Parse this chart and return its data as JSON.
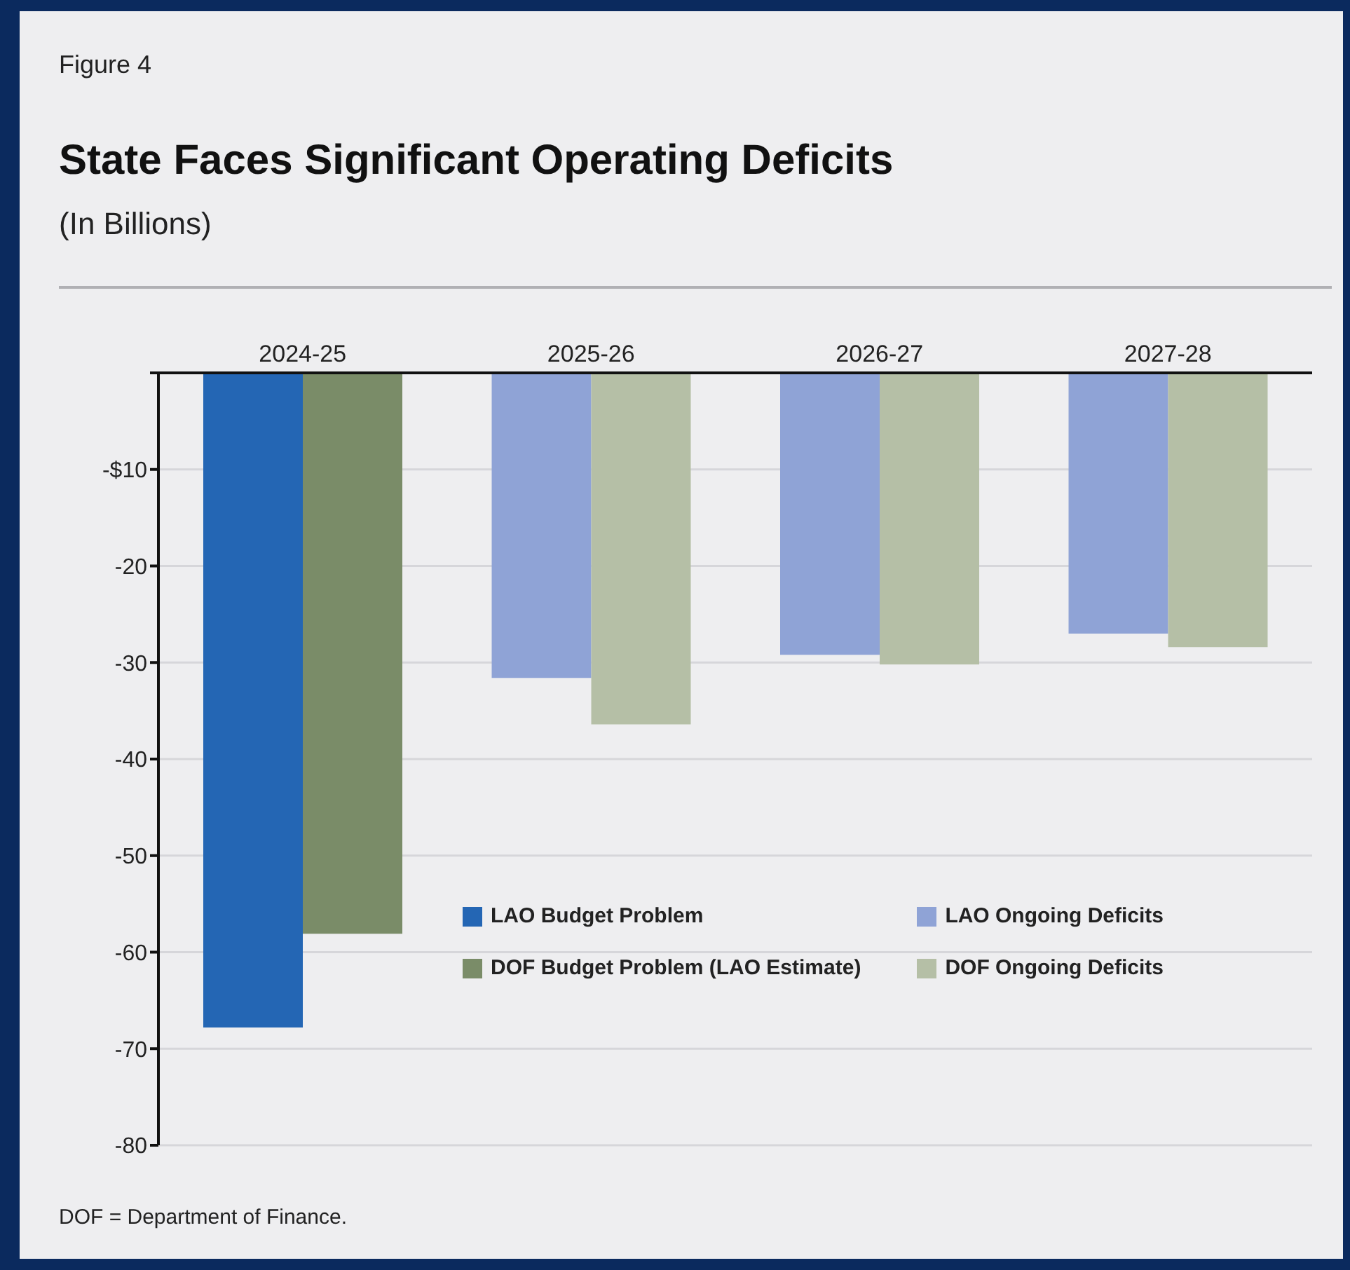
{
  "chart_data": {
    "type": "bar",
    "title": "State Faces Significant Operating Deficits",
    "subtitle": "(In Billions)",
    "annotations": [
      "Figure 4",
      "DOF = Department of Finance."
    ],
    "categories": [
      "2024-25",
      "2025-26",
      "2026-27",
      "2027-28"
    ],
    "series": [
      {
        "name": "LAO Budget Problem",
        "color": "#2466b4",
        "values": [
          -67.8,
          null,
          null,
          null
        ]
      },
      {
        "name": "DOF Budget Problem (LAO Estimate)",
        "color": "#7a8c68",
        "values": [
          -58.1,
          null,
          null,
          null
        ]
      },
      {
        "name": "LAO Ongoing Deficits",
        "color": "#8fa3d6",
        "values": [
          null,
          -31.6,
          -29.2,
          -27.0
        ]
      },
      {
        "name": "DOF Ongoing Deficits",
        "color": "#b5bfa6",
        "values": [
          null,
          -36.4,
          -30.2,
          -28.4
        ]
      }
    ],
    "ylim": [
      -80,
      0
    ],
    "yticks": [
      {
        "value": 0,
        "label": null
      },
      {
        "value": -10,
        "label": "-$10"
      },
      -20,
      -30,
      -40,
      -50,
      -60,
      -70,
      -80
    ],
    "grid": "y",
    "legend": "bottom right"
  }
}
